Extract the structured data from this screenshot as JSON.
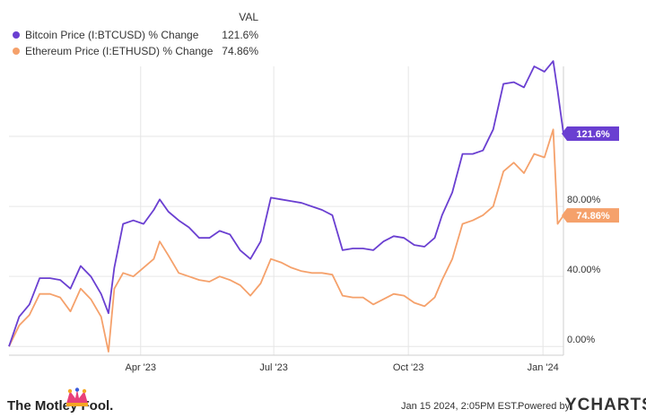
{
  "legend": {
    "header": "VAL",
    "items": [
      {
        "label": "Bitcoin Price (I:BTCUSD) % Change",
        "value": "121.6%",
        "color": "#6a3fd1"
      },
      {
        "label": "Ethereum Price (I:ETHUSD) % Change",
        "value": "74.86%",
        "color": "#f5a16b"
      }
    ]
  },
  "footer": {
    "brand": "The Motley Fool.",
    "timestamp": "Jan 15 2024, 2:05PM EST.",
    "powered_by": "Powered by",
    "ycharts": "YCHARTS"
  },
  "chart_data": {
    "type": "line",
    "x_tick_labels": [
      "Apr '23",
      "Jul '23",
      "Oct '23",
      "Jan '24"
    ],
    "x_tick_dates": [
      "2023-04-01",
      "2023-07-01",
      "2023-10-01",
      "2024-01-01"
    ],
    "y_tick_labels": [
      "0.00%",
      "40.00%",
      "80.00%"
    ],
    "y_ticks": [
      0,
      40,
      80
    ],
    "ylim": [
      -5,
      160
    ],
    "xlim": [
      "2023-01-01",
      "2024-01-15"
    ],
    "grid": true,
    "end_labels": [
      "121.6%",
      "74.86%"
    ],
    "series": [
      {
        "name": "Bitcoin Price (I:BTCUSD) % Change",
        "color": "#6a3fd1",
        "x": [
          "2023-01-01",
          "2023-01-08",
          "2023-01-15",
          "2023-01-22",
          "2023-01-29",
          "2023-02-05",
          "2023-02-12",
          "2023-02-19",
          "2023-02-26",
          "2023-03-05",
          "2023-03-10",
          "2023-03-14",
          "2023-03-20",
          "2023-03-27",
          "2023-04-03",
          "2023-04-10",
          "2023-04-14",
          "2023-04-20",
          "2023-04-27",
          "2023-05-04",
          "2023-05-11",
          "2023-05-18",
          "2023-05-25",
          "2023-06-01",
          "2023-06-08",
          "2023-06-15",
          "2023-06-22",
          "2023-06-29",
          "2023-07-06",
          "2023-07-13",
          "2023-07-20",
          "2023-07-27",
          "2023-08-03",
          "2023-08-10",
          "2023-08-17",
          "2023-08-24",
          "2023-08-31",
          "2023-09-07",
          "2023-09-14",
          "2023-09-21",
          "2023-09-28",
          "2023-10-05",
          "2023-10-12",
          "2023-10-19",
          "2023-10-24",
          "2023-10-31",
          "2023-11-07",
          "2023-11-14",
          "2023-11-21",
          "2023-11-28",
          "2023-12-05",
          "2023-12-12",
          "2023-12-19",
          "2023-12-26",
          "2024-01-02",
          "2024-01-08",
          "2024-01-11",
          "2024-01-15"
        ],
        "y": [
          0,
          17,
          24,
          39,
          39,
          38,
          33,
          46,
          40,
          30,
          19,
          45,
          70,
          72,
          70,
          78,
          84,
          77,
          72,
          68,
          62,
          62,
          66,
          64,
          55,
          50,
          60,
          85,
          84,
          83,
          82,
          80,
          78,
          75,
          55,
          56,
          56,
          55,
          60,
          63,
          62,
          58,
          57,
          62,
          75,
          88,
          110,
          110,
          112,
          124,
          150,
          151,
          148,
          160,
          157,
          163,
          146,
          121.6
        ]
      },
      {
        "name": "Ethereum Price (I:ETHUSD) % Change",
        "color": "#f5a16b",
        "x": [
          "2023-01-01",
          "2023-01-08",
          "2023-01-15",
          "2023-01-22",
          "2023-01-29",
          "2023-02-05",
          "2023-02-12",
          "2023-02-19",
          "2023-02-26",
          "2023-03-05",
          "2023-03-10",
          "2023-03-14",
          "2023-03-20",
          "2023-03-27",
          "2023-04-03",
          "2023-04-10",
          "2023-04-14",
          "2023-04-20",
          "2023-04-27",
          "2023-05-04",
          "2023-05-11",
          "2023-05-18",
          "2023-05-25",
          "2023-06-01",
          "2023-06-08",
          "2023-06-15",
          "2023-06-22",
          "2023-06-29",
          "2023-07-06",
          "2023-07-13",
          "2023-07-20",
          "2023-07-27",
          "2023-08-03",
          "2023-08-10",
          "2023-08-17",
          "2023-08-24",
          "2023-08-31",
          "2023-09-07",
          "2023-09-14",
          "2023-09-21",
          "2023-09-28",
          "2023-10-05",
          "2023-10-12",
          "2023-10-19",
          "2023-10-24",
          "2023-10-31",
          "2023-11-07",
          "2023-11-14",
          "2023-11-21",
          "2023-11-28",
          "2023-12-05",
          "2023-12-12",
          "2023-12-19",
          "2023-12-26",
          "2024-01-02",
          "2024-01-08",
          "2024-01-11",
          "2024-01-15"
        ],
        "y": [
          0,
          12,
          18,
          30,
          30,
          28,
          20,
          33,
          27,
          17,
          -3,
          33,
          42,
          40,
          45,
          50,
          60,
          52,
          42,
          40,
          38,
          37,
          40,
          38,
          35,
          29,
          36,
          50,
          48,
          45,
          43,
          42,
          42,
          41,
          29,
          28,
          28,
          24,
          27,
          30,
          29,
          25,
          23,
          28,
          38,
          50,
          70,
          72,
          75,
          80,
          100,
          105,
          99,
          110,
          108,
          124,
          70,
          74.86
        ]
      }
    ]
  }
}
